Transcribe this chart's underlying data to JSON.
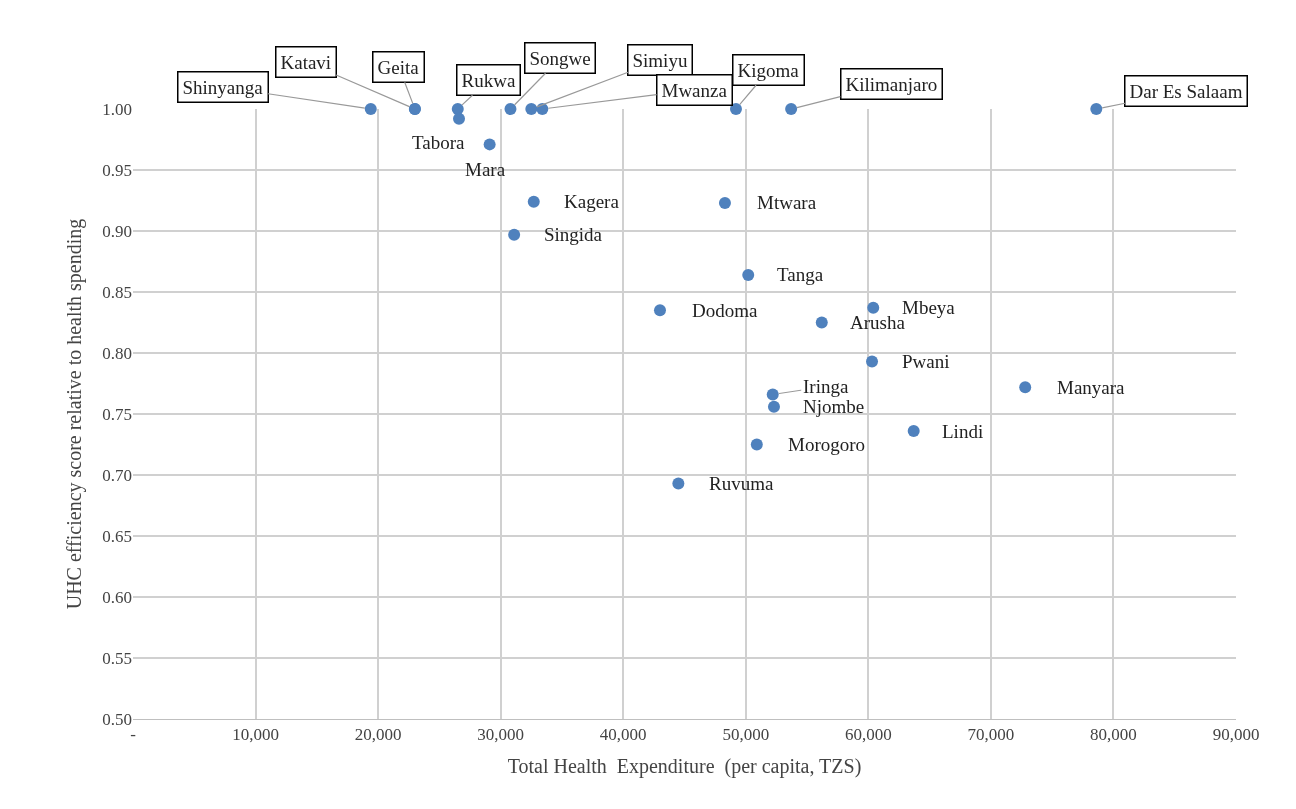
{
  "chart_data": {
    "type": "scatter",
    "xlabel": "Total Health  Expenditure  (per capita, TZS)",
    "ylabel": "UHC efficiency score relative to health spending",
    "x": [
      19400,
      23000,
      23000,
      26500,
      26600,
      29100,
      30800,
      32500,
      33400,
      49200,
      53700,
      78600,
      32700,
      48300,
      31100,
      50200,
      43000,
      60400,
      56200,
      60300,
      52200,
      52300,
      72800,
      63700,
      50900,
      44500
    ],
    "series": [
      {
        "color": "#4f81bd",
        "values": [
          1.0,
          1.0,
          1.0,
          1.0,
          0.992,
          0.971,
          1.0,
          1.0,
          1.0,
          1.0,
          1.0,
          1.0,
          0.924,
          0.923,
          0.897,
          0.864,
          0.835,
          0.837,
          0.825,
          0.793,
          0.766,
          0.756,
          0.772,
          0.736,
          0.725,
          0.693
        ]
      }
    ],
    "annotations": [
      {
        "text": "Shinyanga",
        "x": 19400,
        "y": 1.0
      },
      {
        "text": "Katavi",
        "x": 23000,
        "y": 1.0
      },
      {
        "text": "Geita",
        "x": 23000,
        "y": 1.0
      },
      {
        "text": "Rukwa",
        "x": 26500,
        "y": 1.0
      },
      {
        "text": "Tabora",
        "x": 26600,
        "y": 0.992
      },
      {
        "text": "Mara",
        "x": 29100,
        "y": 0.971
      },
      {
        "text": "Songwe",
        "x": 30800,
        "y": 1.0
      },
      {
        "text": "Simiyu",
        "x": 32500,
        "y": 1.0
      },
      {
        "text": "Mwanza",
        "x": 33400,
        "y": 1.0
      },
      {
        "text": "Kigoma",
        "x": 49200,
        "y": 1.0
      },
      {
        "text": "Kilimanjaro",
        "x": 53700,
        "y": 1.0
      },
      {
        "text": "Dar Es Salaam",
        "x": 78600,
        "y": 1.0
      },
      {
        "text": "Kagera",
        "x": 32700,
        "y": 0.924
      },
      {
        "text": "Mtwara",
        "x": 48300,
        "y": 0.923
      },
      {
        "text": "Singida",
        "x": 31100,
        "y": 0.897
      },
      {
        "text": "Tanga",
        "x": 50200,
        "y": 0.864
      },
      {
        "text": "Dodoma",
        "x": 43000,
        "y": 0.835
      },
      {
        "text": "Mbeya",
        "x": 60400,
        "y": 0.837
      },
      {
        "text": "Arusha",
        "x": 56200,
        "y": 0.825
      },
      {
        "text": "Pwani",
        "x": 60300,
        "y": 0.793
      },
      {
        "text": "Iringa",
        "x": 52200,
        "y": 0.766
      },
      {
        "text": "Njombe",
        "x": 52300,
        "y": 0.756
      },
      {
        "text": "Manyara",
        "x": 72800,
        "y": 0.772
      },
      {
        "text": "Lindi",
        "x": 63700,
        "y": 0.736
      },
      {
        "text": "Morogoro",
        "x": 50900,
        "y": 0.725
      },
      {
        "text": "Ruvuma",
        "x": 44500,
        "y": 0.693
      }
    ],
    "xlim": [
      0,
      90000
    ],
    "xticks": [
      {
        "value": 0,
        "label": "-"
      },
      {
        "value": 10000,
        "label": "10,000"
      },
      {
        "value": 20000,
        "label": "20,000"
      },
      {
        "value": 30000,
        "label": "30,000"
      },
      {
        "value": 40000,
        "label": "40,000"
      },
      {
        "value": 50000,
        "label": "50,000"
      },
      {
        "value": 60000,
        "label": "60,000"
      },
      {
        "value": 70000,
        "label": "70,000"
      },
      {
        "value": 80000,
        "label": "80,000"
      },
      {
        "value": 90000,
        "label": "90,000"
      }
    ],
    "ylim": [
      0.5,
      1.0
    ],
    "yticks": [
      {
        "value": 0.5,
        "label": "0.50"
      },
      {
        "value": 0.55,
        "label": "0.55"
      },
      {
        "value": 0.6,
        "label": "0.60"
      },
      {
        "value": 0.65,
        "label": "0.65"
      },
      {
        "value": 0.7,
        "label": "0.70"
      },
      {
        "value": 0.75,
        "label": "0.75"
      },
      {
        "value": 0.8,
        "label": "0.80"
      },
      {
        "value": 0.85,
        "label": "0.85"
      },
      {
        "value": 0.9,
        "label": "0.90"
      },
      {
        "value": 0.95,
        "label": "0.95"
      },
      {
        "value": 1.0,
        "label": "1.00"
      }
    ],
    "grid": true,
    "marker": "circle"
  }
}
